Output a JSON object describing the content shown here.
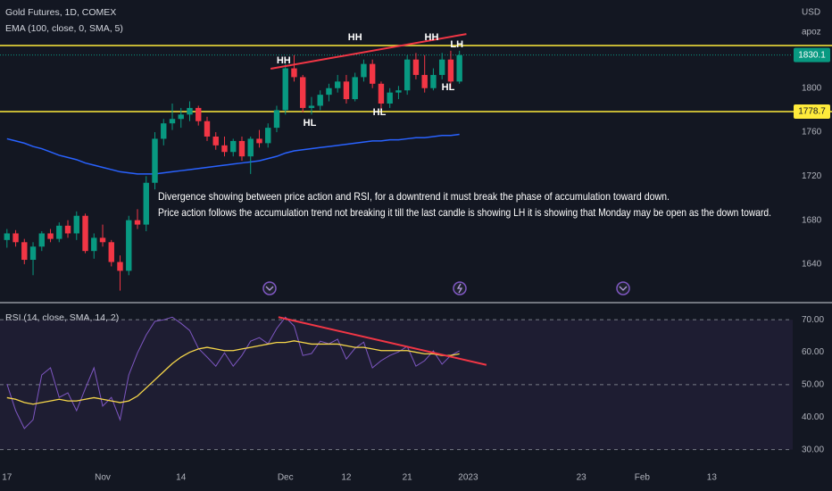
{
  "chart_data": [
    {
      "type": "candlestick",
      "title": "Gold Futures, 1D, COMEX",
      "axis_unit": "USD",
      "author": "apoz",
      "x": [
        0,
        1,
        2,
        3,
        4,
        5,
        6,
        7,
        8,
        9,
        10,
        11,
        12,
        13,
        14,
        15,
        16,
        17,
        18,
        19,
        20,
        21,
        22,
        23,
        24,
        25,
        26,
        27,
        28,
        29,
        30,
        31,
        32,
        33,
        34,
        35,
        36,
        37,
        38,
        39,
        40,
        41,
        42,
        43,
        44,
        45,
        46,
        47,
        48,
        49,
        50,
        51,
        52
      ],
      "open": [
        1662,
        1668,
        1660,
        1644,
        1656,
        1668,
        1663,
        1675,
        1668,
        1684,
        1652,
        1664,
        1660,
        1642,
        1634,
        1680,
        1676,
        1714,
        1754,
        1768,
        1772,
        1776,
        1782,
        1770,
        1756,
        1748,
        1742,
        1752,
        1738,
        1754,
        1750,
        1764,
        1780,
        1818,
        1810,
        1782,
        1784,
        1794,
        1800,
        1806,
        1790,
        1810,
        1822,
        1804,
        1786,
        1796,
        1798,
        1826,
        1812,
        1800,
        1812,
        1826,
        1806
      ],
      "high": [
        1672,
        1671,
        1663,
        1660,
        1670,
        1672,
        1678,
        1680,
        1688,
        1686,
        1668,
        1676,
        1662,
        1648,
        1684,
        1690,
        1720,
        1760,
        1772,
        1786,
        1782,
        1788,
        1784,
        1774,
        1760,
        1756,
        1754,
        1756,
        1756,
        1762,
        1768,
        1784,
        1822,
        1830,
        1812,
        1792,
        1798,
        1804,
        1812,
        1812,
        1814,
        1826,
        1826,
        1806,
        1800,
        1802,
        1830,
        1832,
        1830,
        1818,
        1832,
        1834,
        1834
      ],
      "low": [
        1655,
        1656,
        1640,
        1630,
        1652,
        1660,
        1660,
        1664,
        1662,
        1650,
        1645,
        1656,
        1638,
        1616,
        1630,
        1672,
        1670,
        1708,
        1748,
        1762,
        1764,
        1770,
        1766,
        1752,
        1744,
        1738,
        1738,
        1734,
        1722,
        1746,
        1746,
        1760,
        1776,
        1806,
        1778,
        1776,
        1780,
        1788,
        1796,
        1786,
        1788,
        1806,
        1800,
        1780,
        1782,
        1790,
        1794,
        1808,
        1796,
        1798,
        1808,
        1800,
        1804
      ],
      "close": [
        1668,
        1660,
        1644,
        1656,
        1668,
        1663,
        1675,
        1668,
        1684,
        1652,
        1664,
        1660,
        1642,
        1634,
        1680,
        1676,
        1714,
        1754,
        1768,
        1772,
        1776,
        1782,
        1770,
        1756,
        1748,
        1742,
        1752,
        1738,
        1754,
        1750,
        1764,
        1780,
        1818,
        1810,
        1782,
        1784,
        1794,
        1800,
        1806,
        1790,
        1810,
        1822,
        1804,
        1786,
        1796,
        1798,
        1826,
        1812,
        1800,
        1812,
        1826,
        1806,
        1830
      ],
      "up_color": "#089981",
      "down_color": "#f23645",
      "ema": {
        "name": "EMA (100, close, 0, SMA, 5)",
        "color": "#2962ff",
        "values": [
          1754,
          1752,
          1750,
          1747,
          1745,
          1742,
          1739,
          1737,
          1735,
          1732,
          1730,
          1728,
          1726,
          1724,
          1723,
          1722,
          1722,
          1722,
          1723,
          1724,
          1725,
          1726,
          1727,
          1728,
          1729,
          1730,
          1731,
          1732,
          1733,
          1734,
          1736,
          1738,
          1741,
          1743,
          1744,
          1745,
          1746,
          1747,
          1748,
          1749,
          1750,
          1751,
          1752,
          1752,
          1753,
          1753,
          1754,
          1755,
          1755,
          1756,
          1757,
          1757,
          1758
        ]
      },
      "xlim": [
        -0.8,
        90.3
      ],
      "xticks": [
        {
          "value": 0,
          "label": "17"
        },
        {
          "value": 11,
          "label": "Nov"
        },
        {
          "value": 20,
          "label": "14"
        },
        {
          "value": 32,
          "label": "Dec"
        },
        {
          "value": 39,
          "label": "12"
        },
        {
          "value": 46,
          "label": "21"
        },
        {
          "value": 53,
          "label": "2023"
        },
        {
          "value": 66,
          "label": "23"
        },
        {
          "value": 73,
          "label": "Feb"
        },
        {
          "value": 81,
          "label": "13"
        }
      ],
      "ylim": [
        1605.9,
        1880.1
      ],
      "yticks": [
        1640,
        1680,
        1720,
        1760,
        1800
      ],
      "last_price": 1830.1,
      "resistance_level": 1838.7,
      "support_level": 1778.7,
      "level_color": "#ffeb3b",
      "trendlines": [
        {
          "x": [
            30.3,
            52.8
          ],
          "y": [
            1817.6,
            1849.2
          ],
          "color": "#f23645"
        }
      ],
      "annotations": [
        {
          "text": "HH",
          "x": 31.8,
          "y": 1824.9
        },
        {
          "text": "HH",
          "x": 40,
          "y": 1846
        },
        {
          "text": "HH",
          "x": 48.8,
          "y": 1846
        },
        {
          "text": "LH",
          "x": 51.7,
          "y": 1839.5
        },
        {
          "text": "HL",
          "x": 34.8,
          "y": 1768.1
        },
        {
          "text": "HL",
          "x": 42.8,
          "y": 1777.9
        },
        {
          "text": "HL",
          "x": 50.7,
          "y": 1800.6
        }
      ],
      "note": [
        "Divergence showing between price action and RSI, for a downtrend it must break the phase of accumulation toward down.",
        "Price action follows the accumulation trend not breaking it till the last candle is showing LH it is showing that Monday may be open as the down toward."
      ]
    },
    {
      "type": "line",
      "title": "RSI (14, close, SMA, 14, 2)",
      "series": [
        {
          "color": "#7e57c2",
          "values": [
            50.2,
            42,
            36.5,
            39.2,
            53,
            55.2,
            46.1,
            47.5,
            42,
            48.8,
            55.2,
            43.4,
            46.1,
            39.2,
            53,
            59.8,
            65.3,
            69.5,
            70,
            70.8,
            68.9,
            66.7,
            61.2,
            58.5,
            55.7,
            59.8,
            55.7,
            59,
            63.4,
            64.5,
            62.6,
            67.3,
            70.8,
            68.1,
            59,
            59.6,
            63.4,
            62.6,
            64,
            57.9,
            61.2,
            63.1,
            55.2,
            57.4,
            59,
            60.1,
            61.8,
            55.7,
            57.4,
            60.4,
            56.3,
            59,
            60.4
          ]
        },
        {
          "color": "#f7d74a",
          "values": [
            46,
            45.5,
            44.5,
            44,
            44.5,
            45,
            45.5,
            45,
            45,
            45.5,
            46,
            45.5,
            45,
            44.5,
            45,
            46.5,
            49,
            51.5,
            54,
            56.5,
            58.5,
            60,
            61,
            61.5,
            61,
            60.5,
            60.5,
            61,
            61.5,
            62,
            62.5,
            63,
            63,
            63.5,
            63,
            62.5,
            62.5,
            62.5,
            62.5,
            62,
            61.5,
            61.5,
            61,
            60.5,
            60.5,
            60.5,
            60.5,
            60,
            59.5,
            59.5,
            59,
            59,
            59.5
          ]
        }
      ],
      "ylim": [
        25.5,
        75
      ],
      "yticks": [
        {
          "value": 30,
          "label": "30.00"
        },
        {
          "value": 40,
          "label": "40.00"
        },
        {
          "value": 50,
          "label": "50.00"
        },
        {
          "value": 60,
          "label": "60.00"
        },
        {
          "value": 70,
          "label": "70.00"
        }
      ],
      "bands": [
        70,
        50,
        30
      ],
      "trendlines": [
        {
          "x": [
            31.2,
            55.1
          ],
          "y": [
            70.8,
            56.1
          ],
          "color": "#f23645"
        }
      ]
    }
  ]
}
